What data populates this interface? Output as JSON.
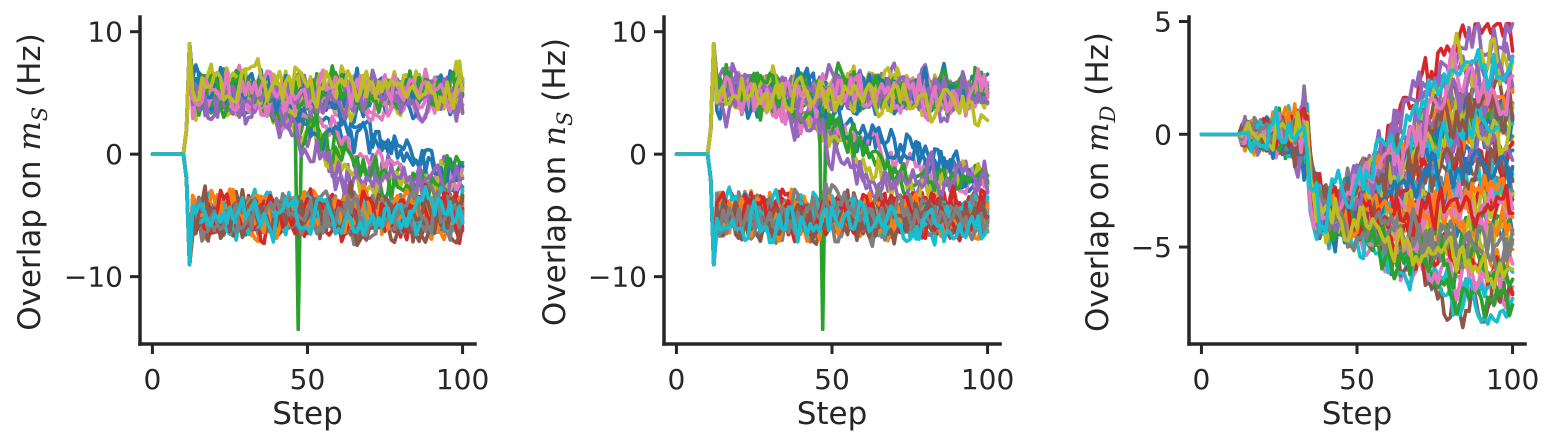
{
  "chart_data": [
    {
      "type": "line",
      "xlabel": "Step",
      "ylabel": "Overlap on m_S (Hz)",
      "ylabel_text": "Overlap on ",
      "ylabel_var": "m",
      "ylabel_sub": "S",
      "ylabel_unit": " (Hz)",
      "xlim": [
        -4,
        104
      ],
      "ylim": [
        -15.5,
        11.2
      ],
      "xticks": [
        0,
        50,
        100
      ],
      "yticks": [
        -10,
        0,
        10
      ],
      "grid": false,
      "legend": "none",
      "series_count": 50,
      "pattern": "bimodal",
      "step_split": 12,
      "upper_level": 5,
      "lower_level": -5,
      "spike": 9,
      "noise": 1.3,
      "drift_step": 30,
      "drift_to": -2,
      "drift_count": 8,
      "dip_step": 47,
      "dip_value": -14.3
    },
    {
      "type": "line",
      "xlabel": "Step",
      "ylabel": "Overlap on n_S (Hz)",
      "ylabel_text": "Overlap on ",
      "ylabel_var": "n",
      "ylabel_sub": "S",
      "ylabel_unit": " (Hz)",
      "xlim": [
        -4,
        104
      ],
      "ylim": [
        -15.5,
        11.2
      ],
      "xticks": [
        0,
        50,
        100
      ],
      "yticks": [
        -10,
        0,
        10
      ],
      "grid": false,
      "legend": "none",
      "series_count": 50,
      "pattern": "bimodal",
      "step_split": 12,
      "upper_level": 5,
      "lower_level": -5,
      "spike": 9,
      "noise": 1.3,
      "drift_step": 30,
      "drift_to": -2,
      "drift_count": 8,
      "dip_step": 47,
      "dip_value": -14.3
    },
    {
      "type": "line",
      "xlabel": "Step",
      "ylabel": "Overlap on m_D (Hz)",
      "ylabel_text": "Overlap on ",
      "ylabel_var": "m",
      "ylabel_sub": "D",
      "ylabel_unit": " (Hz)",
      "xlim": [
        -4,
        104
      ],
      "ylim": [
        -9.3,
        5.2
      ],
      "xticks": [
        0,
        50,
        100
      ],
      "yticks": [
        -5,
        0,
        5
      ],
      "grid": false,
      "legend": "none",
      "series_count": 50,
      "pattern": "spread",
      "step_split": 12,
      "drop_step": 35,
      "drop_level": -3.5,
      "end_range": [
        -8,
        4.5
      ],
      "noise": 0.9
    }
  ],
  "colors": [
    "#1f77b4",
    "#ff7f0e",
    "#2ca02c",
    "#d62728",
    "#9467bd",
    "#8c564b",
    "#e377c2",
    "#7f7f7f",
    "#bcbd22",
    "#17becf"
  ]
}
